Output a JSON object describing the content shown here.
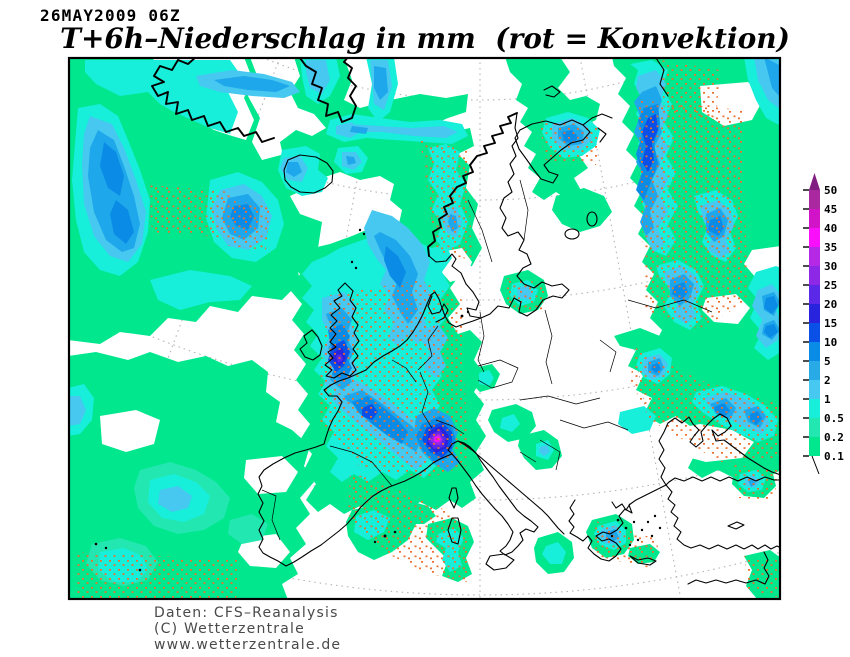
{
  "header": {
    "date_label": "26MAY2009 06Z",
    "title": "T+6h–Niederschlag in mm  (rot = Konvektion)"
  },
  "legend": {
    "unit": "mm",
    "tick_values": [
      "50",
      "45",
      "40",
      "35",
      "30",
      "25",
      "20",
      "15",
      "10",
      "5",
      "2",
      "1",
      "0.5",
      "0.2",
      "0.1"
    ],
    "arrow_color": "#821e82",
    "segment_colors": [
      "#aa28a0",
      "#d214c8",
      "#fa0ffa",
      "#b428e6",
      "#8c28e6",
      "#5a28e6",
      "#2823dc",
      "#0a50e6",
      "#0a8ce6",
      "#28aae6",
      "#46c8f0",
      "#17efda",
      "#23e7b0",
      "#00e78e"
    ]
  },
  "map": {
    "background": "#ffffff",
    "coast_color": "#000000",
    "grid_color": "#b4b4b4",
    "convection_color": "#ed6f2d",
    "palette": {
      "0.1": "#00e78e",
      "0.2": "#23e7b0",
      "0.5": "#17efda",
      "1": "#46c8f0",
      "2": "#1ea7ea",
      "5": "#0a8ce6",
      "10": "#0a50e6",
      "15": "#2823dc",
      "20": "#5a28e6",
      "25": "#8c28e6",
      "30": "#b428e6",
      "35": "#fa0ffa",
      "40": "#d214c8",
      "45": "#aa28a0",
      "50": "#821e82"
    }
  },
  "footer": {
    "line1": "Daten: CFS–Reanalysis",
    "line2": "(C) Wetterzentrale",
    "line3": "www.wetterzentrale.de"
  }
}
